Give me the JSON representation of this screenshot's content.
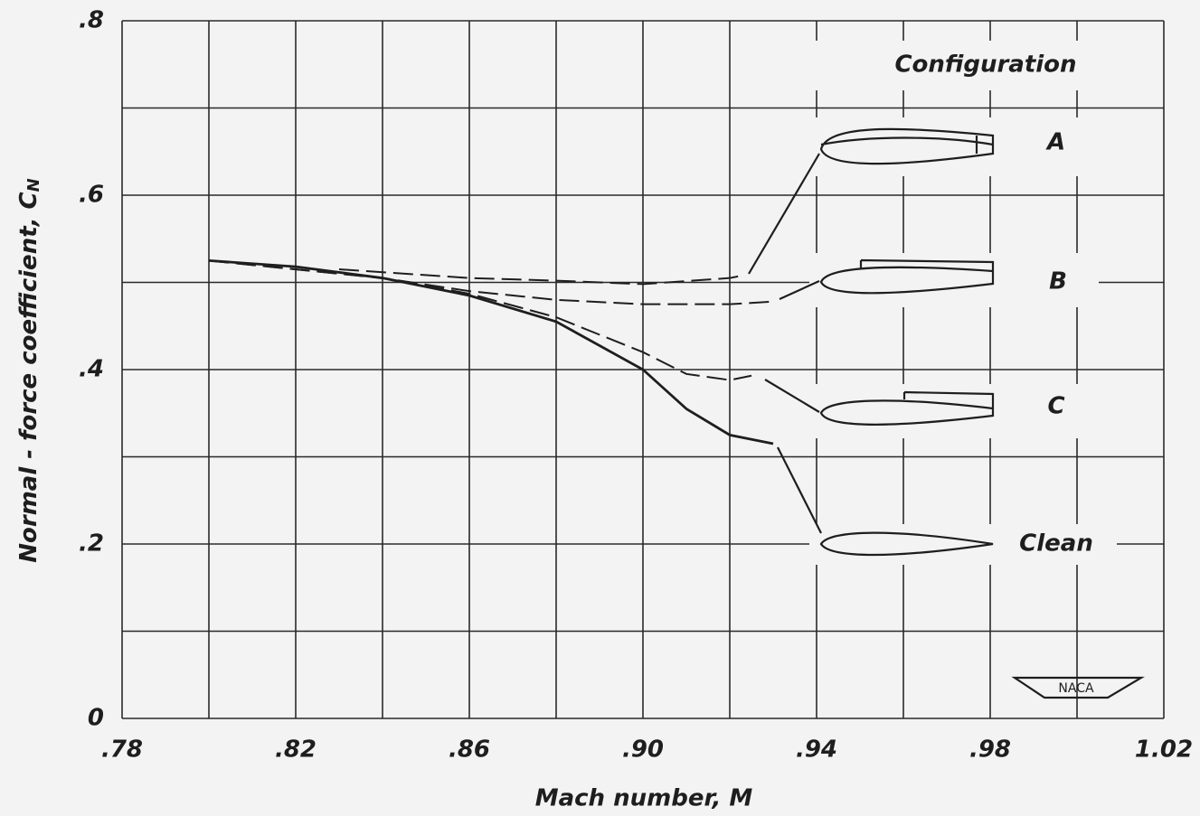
{
  "chart_data": {
    "type": "line",
    "x_label": "Mach number, M",
    "y_label": "Normal - force coefficient, C",
    "y_label_subscript": "N",
    "legend_title": "Configuration",
    "logo_text": "NACA",
    "xlim": [
      0.78,
      1.02
    ],
    "ylim": [
      0,
      0.8
    ],
    "xticks": [
      {
        "value": 0.78,
        "label": ".78"
      },
      {
        "value": 0.82,
        "label": ".82"
      },
      {
        "value": 0.86,
        "label": ".86"
      },
      {
        "value": 0.9,
        "label": ".90"
      },
      {
        "value": 0.94,
        "label": ".94"
      },
      {
        "value": 0.98,
        "label": ".98"
      },
      1.02
    ],
    "yticks": [
      0,
      {
        "value": 0.2,
        "label": ".2"
      },
      {
        "value": 0.4,
        "label": ".4"
      },
      {
        "value": 0.6,
        "label": ".6"
      },
      {
        "value": 0.8,
        "label": ".8"
      }
    ],
    "xgrid": [
      0.8,
      0.84,
      0.88,
      0.92,
      0.96,
      1.0
    ],
    "ygrid": [
      0.1,
      0.3,
      0.5,
      0.7
    ],
    "grid": true,
    "series": [
      {
        "name": "A",
        "color": "#1e1e1e",
        "style": "dashed",
        "x": [
          0.83,
          0.86,
          0.88,
          0.9,
          0.92,
          0.923
        ],
        "values": [
          0.515,
          0.505,
          0.502,
          0.498,
          0.505,
          0.508
        ]
      },
      {
        "name": "B",
        "color": "#1e1e1e",
        "style": "dashed",
        "x": [
          0.8,
          0.84,
          0.86,
          0.88,
          0.9,
          0.92,
          0.93
        ],
        "values": [
          0.525,
          0.505,
          0.49,
          0.48,
          0.475,
          0.475,
          0.478
        ]
      },
      {
        "name": "C",
        "color": "#1e1e1e",
        "style": "dashed",
        "x": [
          0.8,
          0.84,
          0.86,
          0.88,
          0.9,
          0.91,
          0.92,
          0.925
        ],
        "values": [
          0.525,
          0.505,
          0.487,
          0.46,
          0.42,
          0.395,
          0.388,
          0.393
        ]
      },
      {
        "name": "Clean",
        "color": "#1e1e1e",
        "style": "solid",
        "x": [
          0.8,
          0.82,
          0.84,
          0.86,
          0.88,
          0.9,
          0.91,
          0.92,
          0.93
        ],
        "values": [
          0.525,
          0.518,
          0.505,
          0.485,
          0.455,
          0.4,
          0.355,
          0.325,
          0.315
        ]
      }
    ]
  }
}
